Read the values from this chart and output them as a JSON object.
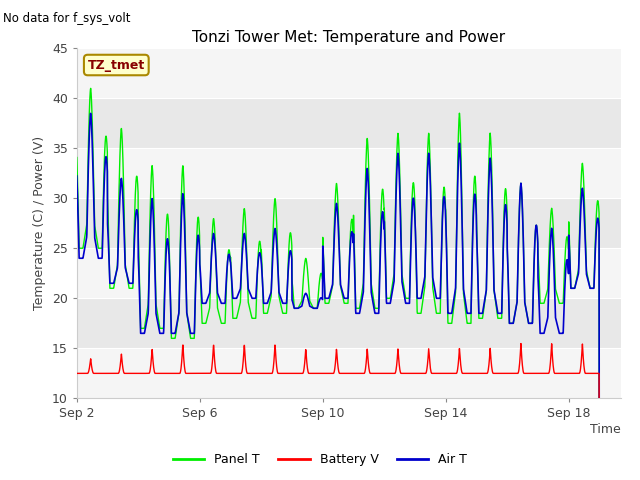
{
  "title": "Tonzi Tower Met: Temperature and Power",
  "no_data_text": "No data for f_sys_volt",
  "ylabel": "Temperature (C) / Power (V)",
  "xlabel": "Time",
  "legend_label": "TZ_tmet",
  "ylim": [
    10,
    45
  ],
  "yticks": [
    10,
    15,
    20,
    25,
    30,
    35,
    40,
    45
  ],
  "xtick_labels": [
    "Sep 2",
    "Sep 6",
    "Sep 10",
    "Sep 14",
    "Sep 18"
  ],
  "xtick_positions": [
    2,
    6,
    10,
    14,
    18
  ],
  "bg_color_light": "#f0f0f0",
  "bg_color_dark": "#dcdcdc",
  "panel_color": "#00ee00",
  "battery_color": "#ff0000",
  "air_color": "#0000cc",
  "legend_items": [
    "Panel T",
    "Battery V",
    "Air T"
  ],
  "n_days": 17,
  "pts_per_day": 144,
  "panel_peaks": [
    41.0,
    37.0,
    33.3,
    33.3,
    28.0,
    29.0,
    30.0,
    24.0,
    31.5,
    36.0,
    36.5,
    36.5,
    38.5,
    36.5,
    31.5,
    29.0,
    33.5
  ],
  "panel_troughs": [
    25.0,
    21.0,
    17.0,
    16.0,
    17.5,
    18.0,
    18.5,
    19.0,
    19.5,
    19.0,
    20.0,
    18.5,
    17.5,
    18.0,
    17.5,
    19.5,
    21.0
  ],
  "air_peaks": [
    38.5,
    32.0,
    30.0,
    30.5,
    26.5,
    26.5,
    27.0,
    20.5,
    29.5,
    33.0,
    34.5,
    34.5,
    35.5,
    34.0,
    31.5,
    27.0,
    31.0
  ],
  "air_troughs": [
    24.0,
    21.5,
    16.5,
    16.5,
    19.5,
    20.0,
    19.5,
    19.0,
    20.0,
    18.5,
    19.5,
    20.0,
    18.5,
    18.5,
    17.5,
    16.5,
    21.0
  ],
  "battery_base": 12.5,
  "battery_peaks": [
    14.0,
    14.5,
    15.0,
    15.5,
    15.5,
    15.5,
    15.5,
    15.0,
    15.0,
    15.0,
    15.0,
    15.0,
    15.0,
    15.0,
    15.5,
    15.5,
    15.5
  ],
  "xlim_start": 2.0,
  "xlim_end": 19.7
}
